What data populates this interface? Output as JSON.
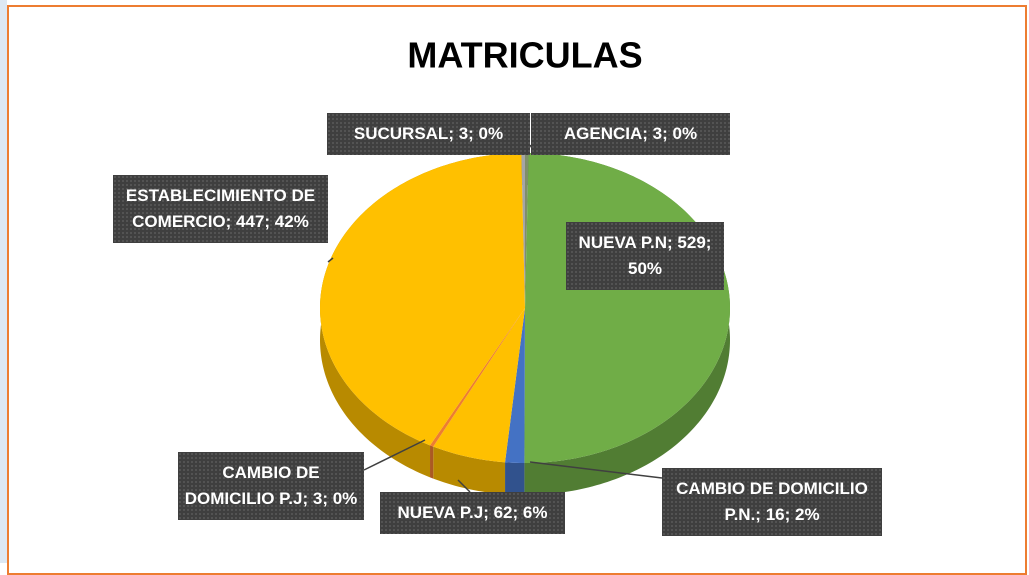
{
  "chart_data": {
    "type": "pie",
    "title": "MATRICULAS",
    "categories": [
      "AGENCIA",
      "NUEVA P.N",
      "CAMBIO DE DOMICILIO P.N.",
      "NUEVA P.J",
      "CAMBIO DE DOMICILIO P.J",
      "ESTABLECIMIENTO DE COMERCIO",
      "SUCURSAL"
    ],
    "values": [
      3,
      529,
      16,
      62,
      3,
      447,
      3
    ],
    "value_labels": [
      "AGENCIA; 3; 0%",
      "NUEVA P.N; 529; 50%",
      "CAMBIO DE DOMICILIO P.N.; 16; 2%",
      "NUEVA P.J; 62; 6%",
      "CAMBIO DE DOMICILIO P.J; 3; 0%",
      "ESTABLECIMIENTO DE COMERCIO; 447; 42%",
      "SUCURSAL; 3; 0%"
    ],
    "colors": [
      "#7f8f6a",
      "#70ad47",
      "#4472c4",
      "#ffc000",
      "#ed7d31",
      "#ffc000",
      "#a5a5a5"
    ]
  }
}
